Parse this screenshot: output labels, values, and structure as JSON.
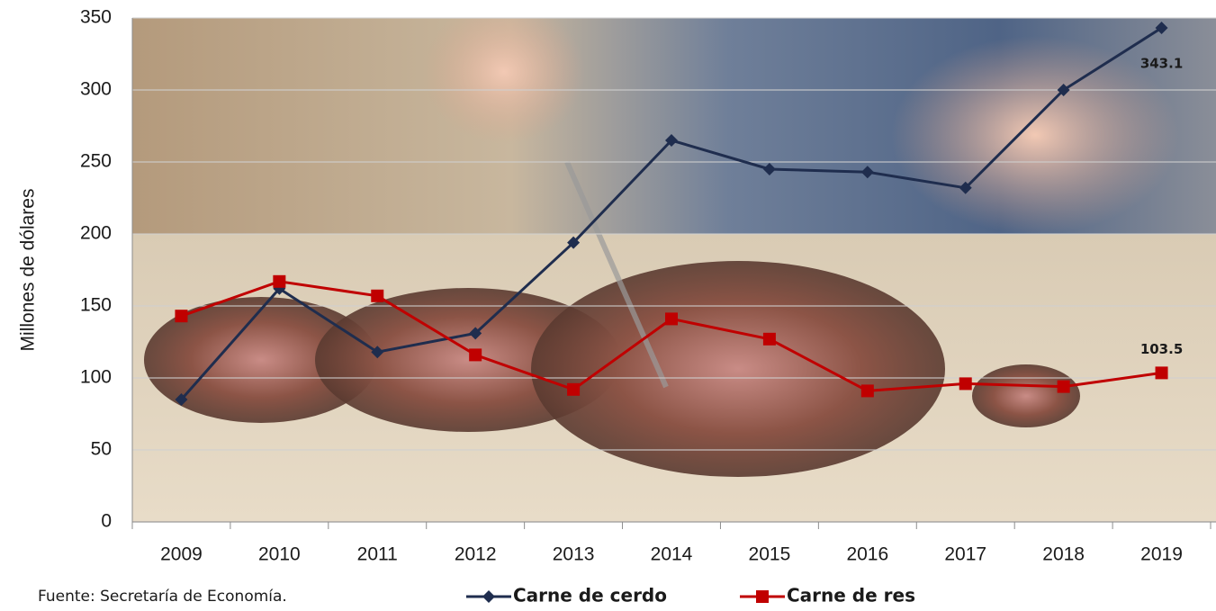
{
  "chart_data": {
    "type": "line",
    "y_label": "Millones de dólares",
    "source": "Fuente: Secretaría de Economía.",
    "categories": [
      "2009",
      "2010",
      "2011",
      "2012",
      "2013",
      "2014",
      "2015",
      "2016",
      "2017",
      "2018",
      "2019"
    ],
    "series": [
      {
        "name": "Carne de cerdo",
        "color": "#1f2d4e",
        "marker": "diamond",
        "values": [
          85,
          162,
          118,
          131,
          194,
          265,
          245,
          243,
          232,
          300,
          343.1
        ]
      },
      {
        "name": "Carne de res",
        "color": "#c00000",
        "marker": "square",
        "values": [
          143,
          167,
          157,
          116,
          92,
          141,
          127,
          91,
          96,
          94,
          103.5
        ]
      }
    ],
    "label_last_point": true,
    "ylim": [
      0,
      350
    ],
    "yticks": [
      0,
      50,
      100,
      150,
      200,
      250,
      300,
      350
    ],
    "grid": true,
    "legend": "bottom"
  }
}
